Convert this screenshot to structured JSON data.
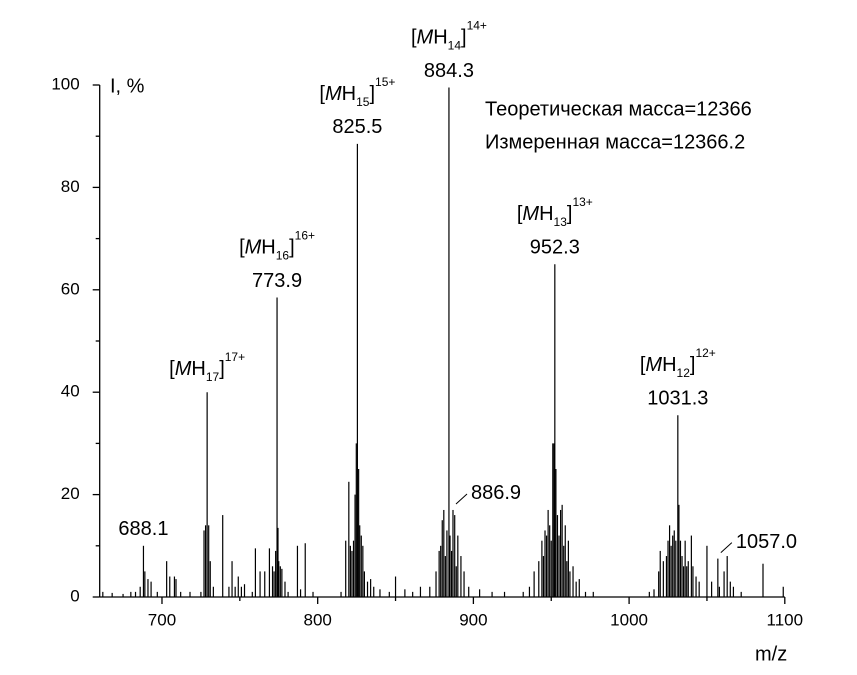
{
  "chart_data": {
    "type": "stem",
    "xlabel": "m/z",
    "ylabel": "I, %",
    "xlim": [
      660,
      1100
    ],
    "ylim": [
      0,
      100
    ],
    "xticks": [
      700,
      800,
      900,
      1000,
      1100
    ],
    "xticks_minor": [
      750,
      850,
      950,
      1050
    ],
    "yticks": [
      0,
      20,
      40,
      60,
      80,
      100
    ],
    "yticks_minor": [
      10,
      30,
      50,
      70,
      90
    ],
    "grid": false,
    "info": [
      "Теоретическая масса=12366",
      "Измеренная масса=12366.2"
    ],
    "series": [
      {
        "color": "#000000",
        "x": [
          662,
          668,
          675,
          680,
          683,
          686,
          688.1,
          689,
          691,
          693,
          697,
          703,
          705,
          708,
          709,
          712,
          718,
          725,
          727,
          728,
          729,
          730,
          731,
          733,
          739,
          743,
          745,
          747,
          749,
          751,
          753,
          758,
          760,
          763,
          766,
          769,
          771,
          772,
          773,
          773.9,
          774.5,
          775,
          776,
          777,
          779,
          781,
          787,
          789,
          792,
          797,
          815,
          818,
          820,
          821,
          822,
          823,
          824,
          824.8,
          825.5,
          826.3,
          827,
          828,
          829,
          830,
          832,
          834,
          836,
          840,
          846,
          850,
          856,
          861,
          866,
          872,
          876,
          878,
          879,
          880,
          881,
          882,
          883,
          884.3,
          885,
          886,
          886.9,
          888,
          889,
          890,
          892,
          894,
          897,
          904,
          912,
          920,
          932,
          936,
          939,
          942,
          944,
          945,
          946,
          947,
          948,
          949,
          950,
          951,
          951.8,
          952.3,
          953,
          954,
          955,
          956,
          957,
          958,
          959,
          960,
          961,
          962,
          964,
          966,
          968,
          972,
          977,
          1013,
          1016,
          1019,
          1020,
          1022,
          1024,
          1025,
          1026,
          1027,
          1028,
          1029,
          1030,
          1031.3,
          1032,
          1033,
          1034,
          1035,
          1036,
          1037,
          1038,
          1040,
          1041,
          1043,
          1045,
          1050,
          1053,
          1057,
          1058,
          1061,
          1063,
          1065,
          1067,
          1072,
          1086,
          1099
        ],
        "values": [
          1,
          0.8,
          0.6,
          1,
          1,
          2,
          10,
          5,
          3.5,
          3,
          1,
          7,
          4,
          4,
          3.5,
          1,
          1,
          1,
          13,
          14,
          40,
          14,
          7,
          2,
          16,
          2,
          7,
          2,
          4,
          2,
          2.5,
          1,
          9.5,
          5,
          5,
          9.5,
          6,
          5,
          9,
          58.5,
          13.5,
          7,
          6,
          5.5,
          3,
          1,
          10,
          1.5,
          10.5,
          1,
          1,
          11,
          22.5,
          10,
          9,
          11,
          20,
          30,
          88.5,
          25,
          14,
          12,
          10,
          5,
          3,
          3.5,
          2,
          1.5,
          1,
          4,
          1.5,
          1,
          2,
          2,
          5,
          9,
          10,
          15,
          17,
          8,
          13,
          99.5,
          12,
          9,
          17,
          16,
          6,
          12,
          8,
          5,
          2,
          1.5,
          1,
          1,
          1,
          2,
          5,
          7,
          11,
          8,
          13,
          12,
          17,
          14,
          11,
          30,
          30,
          65,
          25,
          16,
          12,
          17,
          18,
          10,
          14,
          7,
          11,
          5,
          6,
          3,
          3.5,
          1,
          1,
          1,
          1.5,
          5,
          9,
          7,
          8,
          11,
          14,
          10,
          12,
          13,
          11,
          35.5,
          18,
          11,
          8,
          6,
          11,
          6,
          7,
          12,
          6,
          4,
          3,
          10,
          3,
          7.5,
          2,
          5,
          8,
          3,
          2,
          1,
          6.5,
          2
        ]
      }
    ],
    "annotations": [
      {
        "x": 688.1,
        "label": "688.1"
      },
      {
        "x": 729,
        "formula": [
          {
            "text": "[",
            "style": "normal"
          },
          {
            "text": "M",
            "style": "italic"
          },
          {
            "text": "H",
            "style": "normal"
          },
          {
            "text": "17",
            "style": "sub"
          },
          {
            "text": "]",
            "style": "normal"
          },
          {
            "text": "17+",
            "style": "sup"
          }
        ]
      },
      {
        "x": 773.9,
        "label": "773.9",
        "formula": [
          {
            "text": "[",
            "style": "normal"
          },
          {
            "text": "M",
            "style": "italic"
          },
          {
            "text": "H",
            "style": "normal"
          },
          {
            "text": "16",
            "style": "sub"
          },
          {
            "text": "]",
            "style": "normal"
          },
          {
            "text": "16+",
            "style": "sup"
          }
        ]
      },
      {
        "x": 825.5,
        "label": "825.5",
        "formula": [
          {
            "text": "[",
            "style": "normal"
          },
          {
            "text": "M",
            "style": "italic"
          },
          {
            "text": "H",
            "style": "normal"
          },
          {
            "text": "15",
            "style": "sub"
          },
          {
            "text": "]",
            "style": "normal"
          },
          {
            "text": "15+",
            "style": "sup"
          }
        ]
      },
      {
        "x": 884.3,
        "label": "884.3",
        "formula": [
          {
            "text": "[",
            "style": "normal"
          },
          {
            "text": "M",
            "style": "italic"
          },
          {
            "text": "H",
            "style": "normal"
          },
          {
            "text": "14",
            "style": "sub"
          },
          {
            "text": "]",
            "style": "normal"
          },
          {
            "text": "14+",
            "style": "sup"
          }
        ]
      },
      {
        "x": 886.9,
        "label": "886.9",
        "leader": true
      },
      {
        "x": 952.3,
        "label": "952.3",
        "formula": [
          {
            "text": "[",
            "style": "normal"
          },
          {
            "text": "M",
            "style": "italic"
          },
          {
            "text": "H",
            "style": "normal"
          },
          {
            "text": "13",
            "style": "sub"
          },
          {
            "text": "]",
            "style": "normal"
          },
          {
            "text": "13+",
            "style": "sup"
          }
        ]
      },
      {
        "x": 1031.3,
        "label": "1031.3",
        "formula": [
          {
            "text": "[",
            "style": "normal"
          },
          {
            "text": "M",
            "style": "italic"
          },
          {
            "text": "H",
            "style": "normal"
          },
          {
            "text": "12",
            "style": "sub"
          },
          {
            "text": "]",
            "style": "normal"
          },
          {
            "text": "12+",
            "style": "sup"
          }
        ]
      },
      {
        "x": 1057,
        "label": "1057.0",
        "leader": true
      }
    ]
  }
}
